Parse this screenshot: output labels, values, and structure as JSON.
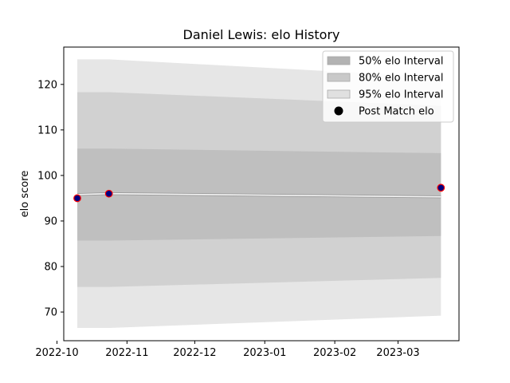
{
  "chart_data": {
    "type": "line",
    "title": "Daniel Lewis: elo History",
    "xlabel": "",
    "ylabel": "elo score",
    "xlim": [
      "2022-10-04",
      "2023-03-28"
    ],
    "ylim": [
      63.7,
      128.2
    ],
    "x_ticks": [
      "2022-10",
      "2022-11",
      "2022-12",
      "2023-01",
      "2023-02",
      "2023-03"
    ],
    "y_ticks": [
      70,
      80,
      90,
      100,
      110,
      120
    ],
    "grid": false,
    "legend_position": "top-right",
    "series": [
      {
        "name": "95% elo Interval",
        "kind": "band",
        "color": "#e6e6e6",
        "x": [
          "2022-10-10",
          "2022-10-24",
          "2023-03-20"
        ],
        "lower": [
          66.5,
          66.5,
          69.2
        ],
        "upper": [
          125.5,
          125.5,
          121.6
        ]
      },
      {
        "name": "80% elo Interval",
        "kind": "band",
        "color": "#d1d1d1",
        "x": [
          "2022-10-10",
          "2022-10-24",
          "2023-03-20"
        ],
        "lower": [
          75.5,
          75.5,
          77.5
        ],
        "upper": [
          118.3,
          118.3,
          115.3
        ]
      },
      {
        "name": "50% elo Interval",
        "kind": "band",
        "color": "#bfbfbf",
        "x": [
          "2022-10-10",
          "2022-10-24",
          "2023-03-20"
        ],
        "lower": [
          85.7,
          85.7,
          86.7
        ],
        "upper": [
          105.9,
          105.9,
          104.9
        ]
      },
      {
        "name": "",
        "kind": "line",
        "color": "#f4f4f4",
        "x": [
          "2022-10-10",
          "2022-10-24",
          "2023-03-20"
        ],
        "values": [
          95.8,
          96.0,
          95.3
        ]
      },
      {
        "name": "Post Match elo",
        "kind": "scatter",
        "color": "#000080",
        "edge_color": "#ff0000",
        "x": [
          "2022-10-10",
          "2022-10-24",
          "2023-03-20"
        ],
        "values": [
          95.0,
          96.0,
          97.3
        ]
      }
    ],
    "legend": [
      {
        "label": "50% elo Interval",
        "marker": "patch",
        "color": "#b3b3b3"
      },
      {
        "label": "80% elo Interval",
        "marker": "patch",
        "color": "#c9c9c9"
      },
      {
        "label": "95% elo Interval",
        "marker": "patch",
        "color": "#e0e0e0"
      },
      {
        "label": "Post Match elo",
        "marker": "circle",
        "color": "#000000"
      }
    ]
  }
}
